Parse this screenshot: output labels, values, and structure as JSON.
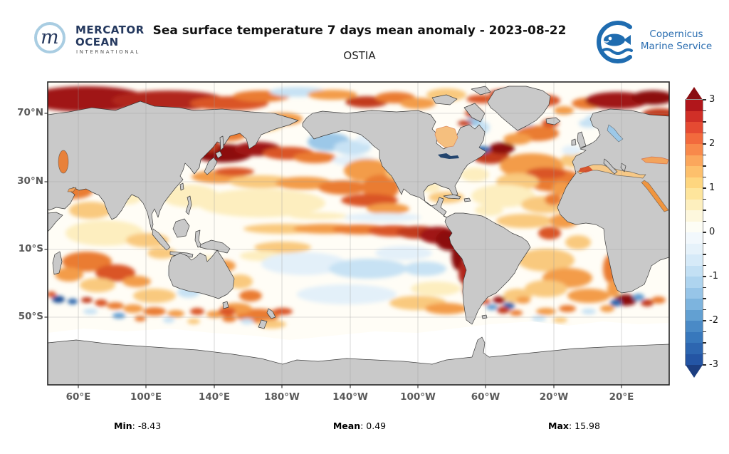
{
  "header": {
    "title": "Sea surface temperature 7 days mean anomaly - 2023-08-22",
    "subtitle": "OSTIA",
    "mercator_logo": {
      "line1": "MERCATOR",
      "line2": "OCEAN",
      "line3": "INTERNATIONAL",
      "monogram": "m"
    },
    "copernicus_logo": {
      "line1": "Copernicus",
      "line2": "Marine Service"
    }
  },
  "map": {
    "lon_tick_labels": [
      "60°E",
      "100°E",
      "140°E",
      "180°W",
      "140°W",
      "100°W",
      "60°W",
      "20°W",
      "20°E"
    ],
    "lat_tick_labels": [
      "70°N",
      "30°N",
      "10°S",
      "50°S"
    ],
    "land_color": "#c9c9c9",
    "coast_color": "#2d2d2d",
    "ocean_color": "#fffdf6",
    "grid_color": "#9a9a9a",
    "no_data_color": "#ffffff"
  },
  "colorbar": {
    "tick_labels": [
      "3",
      "2",
      "1",
      "0",
      "-1",
      "-2",
      "-3"
    ],
    "range": [
      -3,
      3
    ],
    "band_step": 0.25,
    "colors_bottom_to_top": [
      "#2455a4",
      "#2d66b0",
      "#3878bc",
      "#4a8ac6",
      "#62a0d2",
      "#7db4de",
      "#97c5e8",
      "#aed4ef",
      "#c3e0f4",
      "#d6eaf8",
      "#e6f2fa",
      "#f2f8fc",
      "#fdfdf5",
      "#fdf7dd",
      "#fdefbe",
      "#fee59c",
      "#fed67f",
      "#fdc06c",
      "#fba75c",
      "#f8894b",
      "#f26a3d",
      "#e54a32",
      "#d02f27",
      "#b1161b"
    ],
    "arrow_top_color": "#8a0e12",
    "arrow_bottom_color": "#1c3e80"
  },
  "stats": {
    "min_label": "Min",
    "min_value": "-8.43",
    "mean_label": "Mean",
    "mean_value": "0.49",
    "max_label": "Max",
    "max_value": "15.98"
  },
  "chart_data": {
    "type": "heatmap",
    "title": "Sea surface temperature 7 days mean anomaly - 2023-08-22",
    "subtitle": "OSTIA",
    "date": "2023-08-22",
    "averaging_period_days": 7,
    "variable": "sea surface temperature anomaly",
    "colorbar": {
      "range": [
        -3,
        3
      ],
      "ticks": [
        3,
        2,
        1,
        0,
        -1,
        -2,
        -3
      ],
      "band_step": 0.25
    },
    "x_axis": {
      "label": "longitude",
      "ticks": [
        "60°E",
        "100°E",
        "140°E",
        "180°W",
        "140°W",
        "100°W",
        "60°W",
        "20°W",
        "20°E"
      ]
    },
    "y_axis": {
      "label": "latitude",
      "ticks": [
        "70°N",
        "30°N",
        "10°S",
        "50°S"
      ]
    },
    "stats": {
      "min": -8.43,
      "mean": 0.49,
      "max": 15.98
    },
    "legend_position": "right",
    "grid": true
  }
}
